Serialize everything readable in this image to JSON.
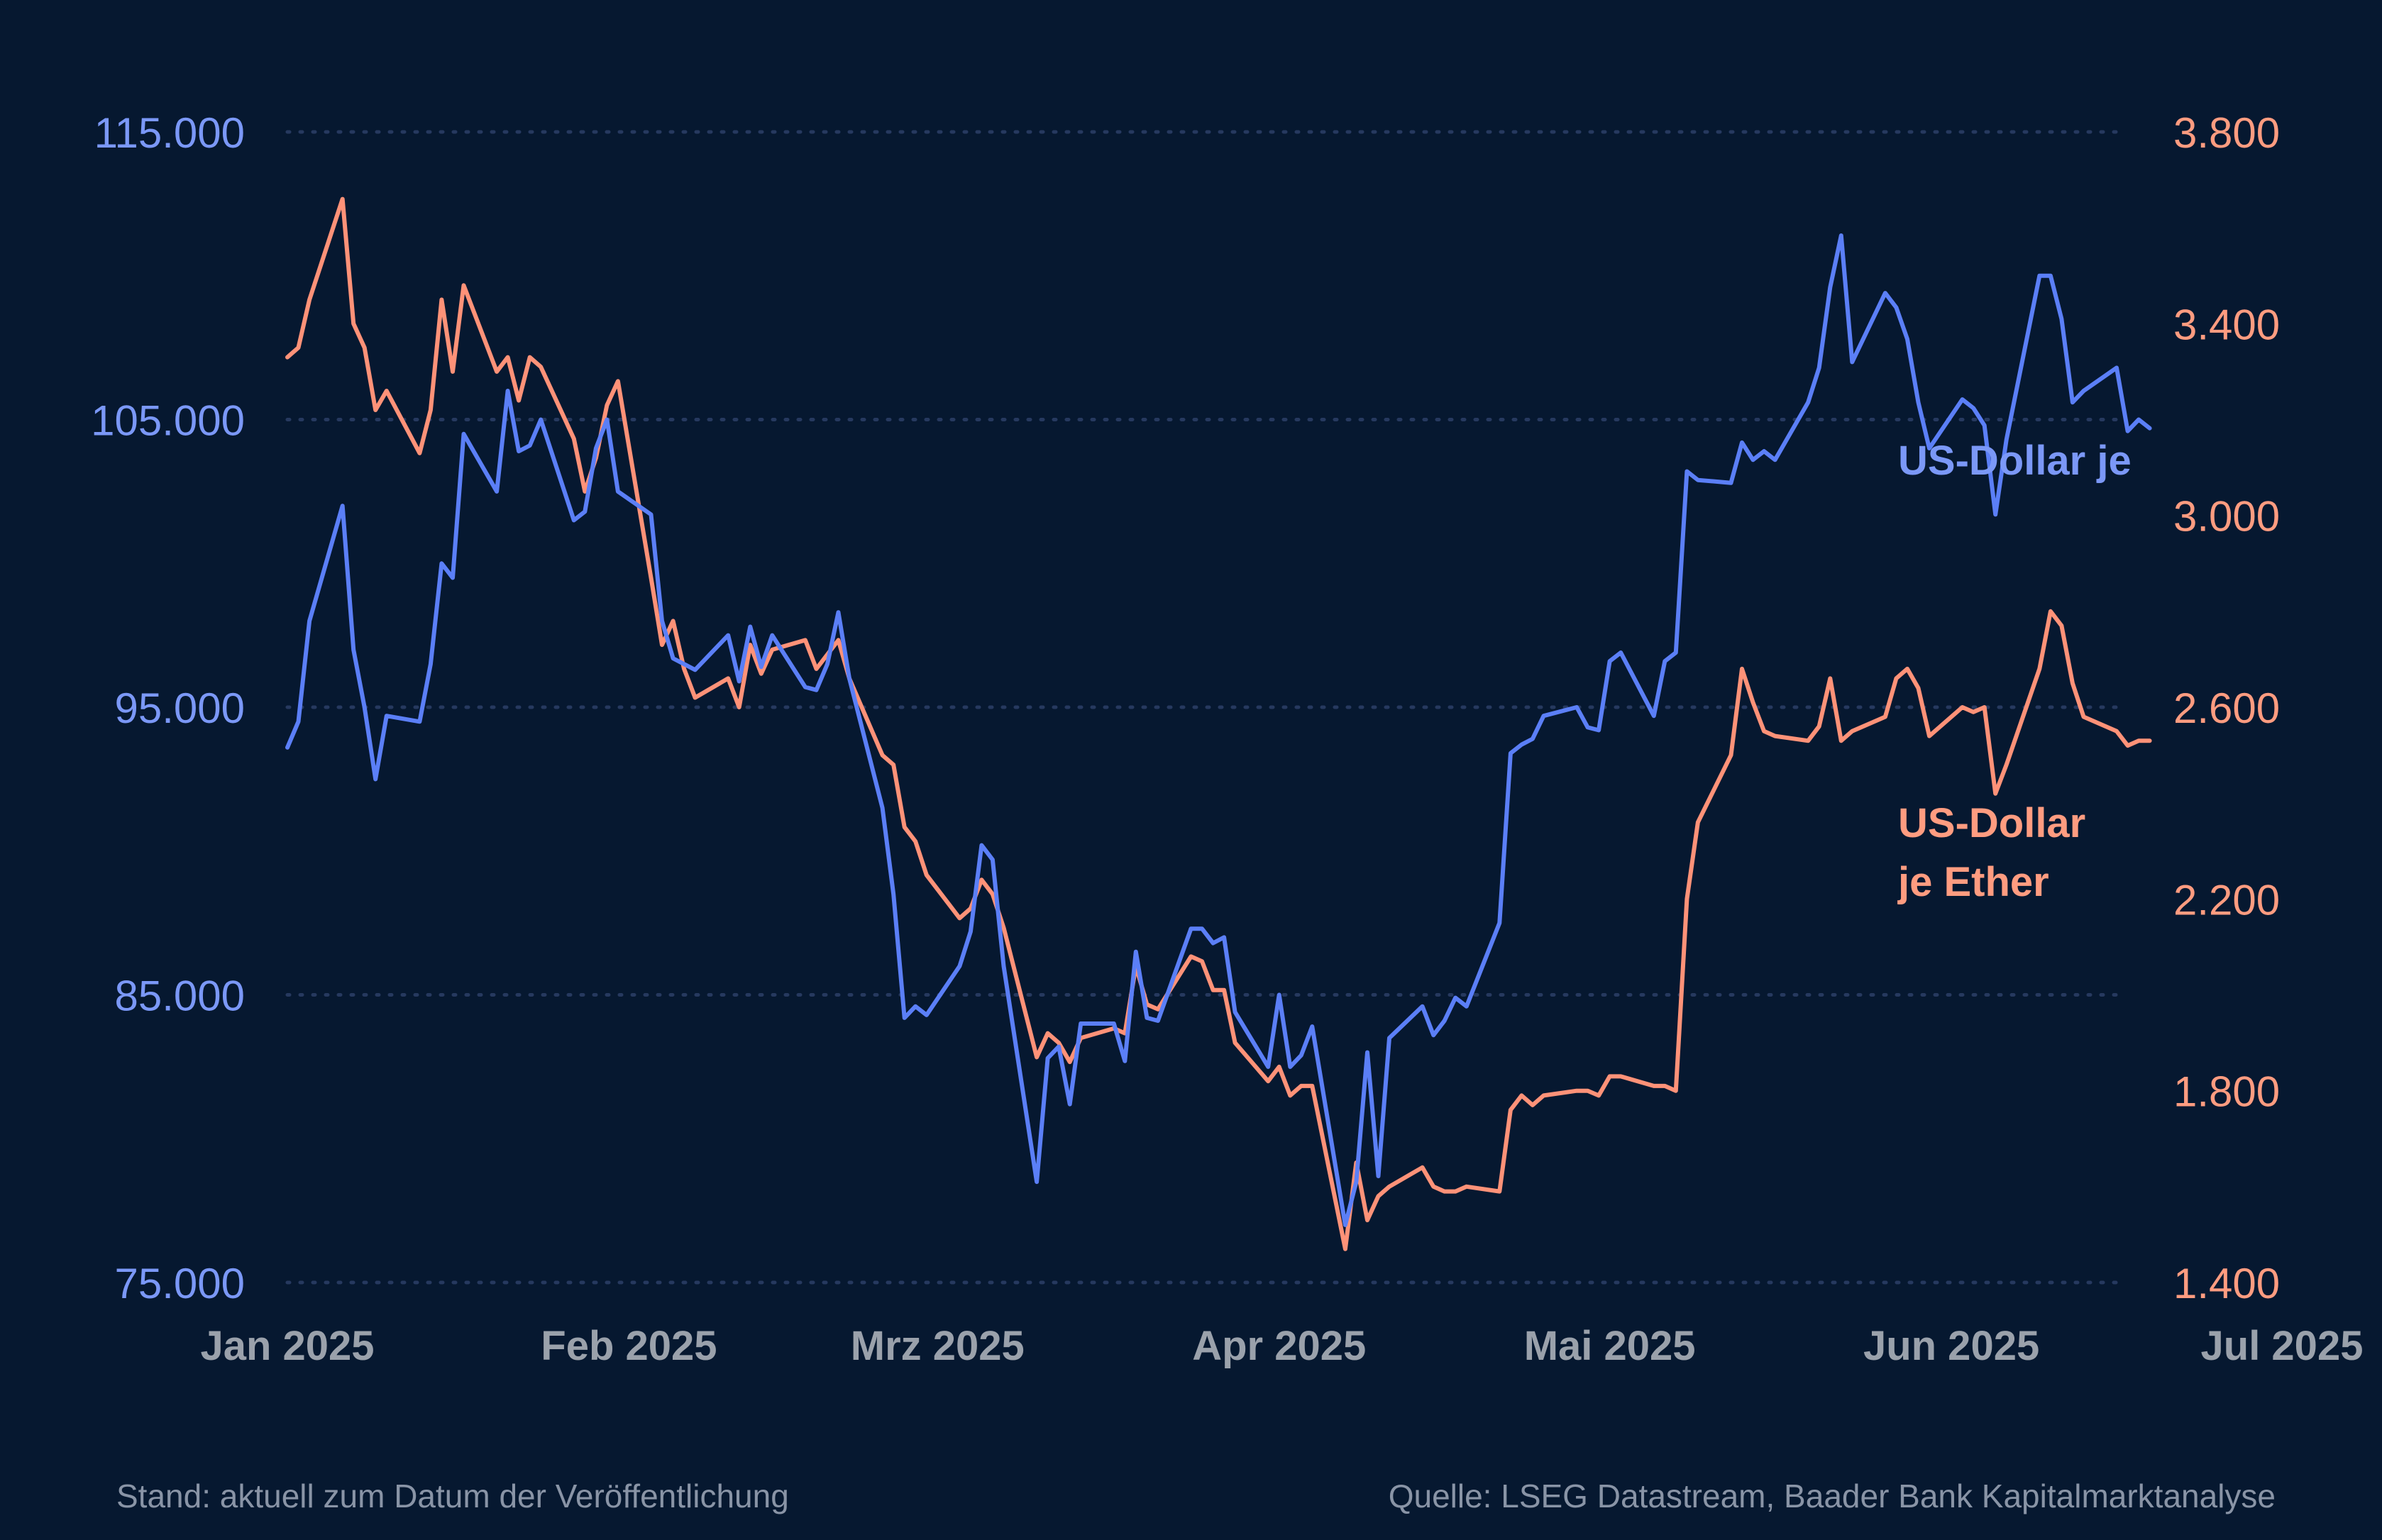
{
  "chart_data": {
    "type": "line",
    "title": "",
    "xlabel": "",
    "ylabel": "",
    "x_tick_labels": [
      "Jan 2025",
      "Feb 2025",
      "Mrz 2025",
      "Apr 2025",
      "Mai 2025",
      "Jun 2025",
      "Jul 2025"
    ],
    "x_tick_dates": [
      "2025-01-01",
      "2025-02-01",
      "2025-03-01",
      "2025-04-01",
      "2025-05-01",
      "2025-06-01",
      "2025-07-01"
    ],
    "x_range": [
      "2025-01-01",
      "2025-07-01"
    ],
    "y_left": {
      "range": [
        75000,
        115000
      ],
      "ticks": [
        75000,
        85000,
        95000,
        105000,
        115000
      ],
      "tick_labels": [
        "75.000",
        "85.000",
        "95.000",
        "105.000",
        "115.000"
      ]
    },
    "y_right": {
      "range": [
        1400,
        3800
      ],
      "ticks": [
        1400,
        1800,
        2200,
        2600,
        3000,
        3400,
        3800
      ],
      "tick_labels": [
        "1.400",
        "1.800",
        "2.200",
        "2.600",
        "3.000",
        "3.400",
        "3.800"
      ]
    },
    "grid": "horizontal dotted",
    "series": [
      {
        "name": "US-Dollar je",
        "label_lines": [
          "US-Dollar je"
        ],
        "axis": "left",
        "color": "#5b7ff7",
        "points": [
          [
            "2025-01-01",
            93600
          ],
          [
            "2025-01-02",
            94500
          ],
          [
            "2025-01-03",
            98000
          ],
          [
            "2025-01-06",
            102000
          ],
          [
            "2025-01-07",
            97000
          ],
          [
            "2025-01-08",
            95000
          ],
          [
            "2025-01-09",
            92500
          ],
          [
            "2025-01-10",
            94700
          ],
          [
            "2025-01-13",
            94500
          ],
          [
            "2025-01-14",
            96500
          ],
          [
            "2025-01-15",
            100000
          ],
          [
            "2025-01-16",
            99500
          ],
          [
            "2025-01-17",
            104500
          ],
          [
            "2025-01-20",
            102500
          ],
          [
            "2025-01-21",
            106000
          ],
          [
            "2025-01-22",
            103900
          ],
          [
            "2025-01-23",
            104100
          ],
          [
            "2025-01-24",
            105000
          ],
          [
            "2025-01-27",
            101500
          ],
          [
            "2025-01-28",
            101800
          ],
          [
            "2025-01-29",
            104000
          ],
          [
            "2025-01-30",
            105000
          ],
          [
            "2025-01-31",
            102500
          ],
          [
            "2025-02-03",
            101700
          ],
          [
            "2025-02-04",
            98000
          ],
          [
            "2025-02-05",
            96700
          ],
          [
            "2025-02-06",
            96500
          ],
          [
            "2025-02-07",
            96300
          ],
          [
            "2025-02-10",
            97500
          ],
          [
            "2025-02-11",
            95900
          ],
          [
            "2025-02-12",
            97800
          ],
          [
            "2025-02-13",
            96400
          ],
          [
            "2025-02-14",
            97500
          ],
          [
            "2025-02-17",
            95700
          ],
          [
            "2025-02-18",
            95600
          ],
          [
            "2025-02-19",
            96500
          ],
          [
            "2025-02-20",
            98300
          ],
          [
            "2025-02-21",
            96000
          ],
          [
            "2025-02-24",
            91500
          ],
          [
            "2025-02-25",
            88500
          ],
          [
            "2025-02-26",
            84200
          ],
          [
            "2025-02-27",
            84600
          ],
          [
            "2025-02-28",
            84300
          ],
          [
            "2025-03-03",
            86000
          ],
          [
            "2025-03-04",
            87200
          ],
          [
            "2025-03-05",
            90200
          ],
          [
            "2025-03-06",
            89700
          ],
          [
            "2025-03-07",
            86000
          ],
          [
            "2025-03-10",
            78500
          ],
          [
            "2025-03-11",
            82800
          ],
          [
            "2025-03-12",
            83200
          ],
          [
            "2025-03-13",
            81200
          ],
          [
            "2025-03-14",
            84000
          ],
          [
            "2025-03-17",
            84000
          ],
          [
            "2025-03-18",
            82700
          ],
          [
            "2025-03-19",
            86500
          ],
          [
            "2025-03-20",
            84200
          ],
          [
            "2025-03-21",
            84100
          ],
          [
            "2025-03-24",
            87300
          ],
          [
            "2025-03-25",
            87300
          ],
          [
            "2025-03-26",
            86800
          ],
          [
            "2025-03-27",
            87000
          ],
          [
            "2025-03-28",
            84400
          ],
          [
            "2025-03-31",
            82500
          ],
          [
            "2025-04-01",
            85000
          ],
          [
            "2025-04-02",
            82500
          ],
          [
            "2025-04-03",
            82900
          ],
          [
            "2025-04-04",
            83900
          ],
          [
            "2025-04-07",
            77000
          ],
          [
            "2025-04-08",
            78500
          ],
          [
            "2025-04-09",
            83000
          ],
          [
            "2025-04-10",
            78700
          ],
          [
            "2025-04-11",
            83500
          ],
          [
            "2025-04-14",
            84600
          ],
          [
            "2025-04-15",
            83600
          ],
          [
            "2025-04-16",
            84100
          ],
          [
            "2025-04-17",
            84900
          ],
          [
            "2025-04-18",
            84600
          ],
          [
            "2025-04-21",
            87500
          ],
          [
            "2025-04-22",
            93400
          ],
          [
            "2025-04-23",
            93700
          ],
          [
            "2025-04-24",
            93900
          ],
          [
            "2025-04-25",
            94700
          ],
          [
            "2025-04-28",
            95000
          ],
          [
            "2025-04-29",
            94300
          ],
          [
            "2025-04-30",
            94200
          ],
          [
            "2025-05-01",
            96600
          ],
          [
            "2025-05-02",
            96900
          ],
          [
            "2025-05-05",
            94700
          ],
          [
            "2025-05-06",
            96600
          ],
          [
            "2025-05-07",
            96900
          ],
          [
            "2025-05-08",
            103200
          ],
          [
            "2025-05-09",
            102900
          ],
          [
            "2025-05-12",
            102800
          ],
          [
            "2025-05-13",
            104200
          ],
          [
            "2025-05-14",
            103600
          ],
          [
            "2025-05-15",
            103900
          ],
          [
            "2025-05-16",
            103600
          ],
          [
            "2025-05-19",
            105600
          ],
          [
            "2025-05-20",
            106800
          ],
          [
            "2025-05-21",
            109600
          ],
          [
            "2025-05-22",
            111400
          ],
          [
            "2025-05-23",
            107000
          ],
          [
            "2025-05-26",
            109400
          ],
          [
            "2025-05-27",
            108900
          ],
          [
            "2025-05-28",
            107800
          ],
          [
            "2025-05-29",
            105600
          ],
          [
            "2025-05-30",
            104000
          ],
          [
            "2025-06-02",
            105700
          ],
          [
            "2025-06-03",
            105400
          ],
          [
            "2025-06-04",
            104800
          ],
          [
            "2025-06-05",
            101700
          ],
          [
            "2025-06-06",
            104300
          ],
          [
            "2025-06-09",
            110000
          ],
          [
            "2025-06-10",
            110000
          ],
          [
            "2025-06-11",
            108500
          ],
          [
            "2025-06-12",
            105600
          ],
          [
            "2025-06-13",
            106000
          ],
          [
            "2025-06-16",
            106800
          ],
          [
            "2025-06-17",
            104600
          ],
          [
            "2025-06-18",
            105000
          ],
          [
            "2025-06-19",
            104700
          ]
        ]
      },
      {
        "name": "US-Dollar je Ether",
        "label_lines": [
          "US-Dollar",
          "je Ether"
        ],
        "axis": "right",
        "color": "#ff9278",
        "points": [
          [
            "2025-01-01",
            3330
          ],
          [
            "2025-01-02",
            3350
          ],
          [
            "2025-01-03",
            3450
          ],
          [
            "2025-01-06",
            3660
          ],
          [
            "2025-01-07",
            3400
          ],
          [
            "2025-01-08",
            3350
          ],
          [
            "2025-01-09",
            3220
          ],
          [
            "2025-01-10",
            3260
          ],
          [
            "2025-01-13",
            3130
          ],
          [
            "2025-01-14",
            3220
          ],
          [
            "2025-01-15",
            3450
          ],
          [
            "2025-01-16",
            3300
          ],
          [
            "2025-01-17",
            3480
          ],
          [
            "2025-01-20",
            3300
          ],
          [
            "2025-01-21",
            3330
          ],
          [
            "2025-01-22",
            3240
          ],
          [
            "2025-01-23",
            3330
          ],
          [
            "2025-01-24",
            3310
          ],
          [
            "2025-01-27",
            3160
          ],
          [
            "2025-01-28",
            3050
          ],
          [
            "2025-01-29",
            3120
          ],
          [
            "2025-01-30",
            3230
          ],
          [
            "2025-01-31",
            3280
          ],
          [
            "2025-02-03",
            2870
          ],
          [
            "2025-02-04",
            2730
          ],
          [
            "2025-02-05",
            2780
          ],
          [
            "2025-02-06",
            2680
          ],
          [
            "2025-02-07",
            2620
          ],
          [
            "2025-02-10",
            2660
          ],
          [
            "2025-02-11",
            2600
          ],
          [
            "2025-02-12",
            2730
          ],
          [
            "2025-02-13",
            2670
          ],
          [
            "2025-02-14",
            2720
          ],
          [
            "2025-02-17",
            2740
          ],
          [
            "2025-02-18",
            2680
          ],
          [
            "2025-02-19",
            2710
          ],
          [
            "2025-02-20",
            2740
          ],
          [
            "2025-02-21",
            2660
          ],
          [
            "2025-02-24",
            2500
          ],
          [
            "2025-02-25",
            2480
          ],
          [
            "2025-02-26",
            2350
          ],
          [
            "2025-02-27",
            2320
          ],
          [
            "2025-02-28",
            2250
          ],
          [
            "2025-03-03",
            2160
          ],
          [
            "2025-03-04",
            2180
          ],
          [
            "2025-03-05",
            2240
          ],
          [
            "2025-03-06",
            2210
          ],
          [
            "2025-03-07",
            2140
          ],
          [
            "2025-03-10",
            1870
          ],
          [
            "2025-03-11",
            1920
          ],
          [
            "2025-03-12",
            1900
          ],
          [
            "2025-03-13",
            1860
          ],
          [
            "2025-03-14",
            1910
          ],
          [
            "2025-03-17",
            1930
          ],
          [
            "2025-03-18",
            1920
          ],
          [
            "2025-03-19",
            2060
          ],
          [
            "2025-03-20",
            1980
          ],
          [
            "2025-03-21",
            1970
          ],
          [
            "2025-03-24",
            2080
          ],
          [
            "2025-03-25",
            2070
          ],
          [
            "2025-03-26",
            2010
          ],
          [
            "2025-03-27",
            2010
          ],
          [
            "2025-03-28",
            1900
          ],
          [
            "2025-03-31",
            1820
          ],
          [
            "2025-04-01",
            1850
          ],
          [
            "2025-04-02",
            1790
          ],
          [
            "2025-04-03",
            1810
          ],
          [
            "2025-04-04",
            1810
          ],
          [
            "2025-04-07",
            1470
          ],
          [
            "2025-04-08",
            1650
          ],
          [
            "2025-04-09",
            1530
          ],
          [
            "2025-04-10",
            1580
          ],
          [
            "2025-04-11",
            1600
          ],
          [
            "2025-04-14",
            1640
          ],
          [
            "2025-04-15",
            1600
          ],
          [
            "2025-04-16",
            1590
          ],
          [
            "2025-04-17",
            1590
          ],
          [
            "2025-04-18",
            1600
          ],
          [
            "2025-04-21",
            1590
          ],
          [
            "2025-04-22",
            1760
          ],
          [
            "2025-04-23",
            1790
          ],
          [
            "2025-04-24",
            1770
          ],
          [
            "2025-04-25",
            1790
          ],
          [
            "2025-04-28",
            1800
          ],
          [
            "2025-04-29",
            1800
          ],
          [
            "2025-04-30",
            1790
          ],
          [
            "2025-05-01",
            1830
          ],
          [
            "2025-05-02",
            1830
          ],
          [
            "2025-05-05",
            1810
          ],
          [
            "2025-05-06",
            1810
          ],
          [
            "2025-05-07",
            1800
          ],
          [
            "2025-05-08",
            2200
          ],
          [
            "2025-05-09",
            2360
          ],
          [
            "2025-05-12",
            2500
          ],
          [
            "2025-05-13",
            2680
          ],
          [
            "2025-05-14",
            2610
          ],
          [
            "2025-05-15",
            2550
          ],
          [
            "2025-05-16",
            2540
          ],
          [
            "2025-05-19",
            2530
          ],
          [
            "2025-05-20",
            2560
          ],
          [
            "2025-05-21",
            2660
          ],
          [
            "2025-05-22",
            2530
          ],
          [
            "2025-05-23",
            2550
          ],
          [
            "2025-05-26",
            2580
          ],
          [
            "2025-05-27",
            2660
          ],
          [
            "2025-05-28",
            2680
          ],
          [
            "2025-05-29",
            2640
          ],
          [
            "2025-05-30",
            2540
          ],
          [
            "2025-06-02",
            2600
          ],
          [
            "2025-06-03",
            2590
          ],
          [
            "2025-06-04",
            2600
          ],
          [
            "2025-06-05",
            2420
          ],
          [
            "2025-06-06",
            2480
          ],
          [
            "2025-06-09",
            2680
          ],
          [
            "2025-06-10",
            2800
          ],
          [
            "2025-06-11",
            2770
          ],
          [
            "2025-06-12",
            2650
          ],
          [
            "2025-06-13",
            2580
          ],
          [
            "2025-06-16",
            2550
          ],
          [
            "2025-06-17",
            2520
          ],
          [
            "2025-06-18",
            2530
          ],
          [
            "2025-06-19",
            2530
          ]
        ]
      }
    ]
  },
  "footer": {
    "left": "Stand: aktuell zum Datum der Veröffentlichung",
    "right": "Quelle: LSEG Datastream, Baader Bank Kapitalmarktanalyse"
  },
  "colors": {
    "background": "#061830",
    "grid": "#26395f",
    "left_axis_labels": "#7b98f7",
    "right_axis_labels": "#ff9c80",
    "x_axis_labels": "#9aa1ab",
    "footer_text": "#8994a6"
  }
}
